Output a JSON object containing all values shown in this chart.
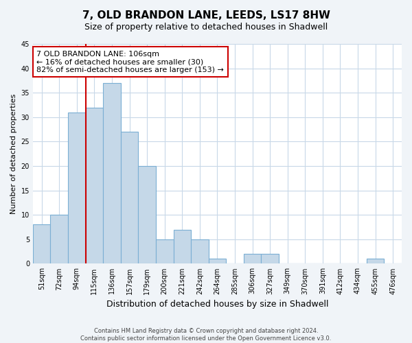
{
  "title": "7, OLD BRANDON LANE, LEEDS, LS17 8HW",
  "subtitle": "Size of property relative to detached houses in Shadwell",
  "xlabel": "Distribution of detached houses by size in Shadwell",
  "ylabel": "Number of detached properties",
  "bin_labels": [
    "51sqm",
    "72sqm",
    "94sqm",
    "115sqm",
    "136sqm",
    "157sqm",
    "179sqm",
    "200sqm",
    "221sqm",
    "242sqm",
    "264sqm",
    "285sqm",
    "306sqm",
    "327sqm",
    "349sqm",
    "370sqm",
    "391sqm",
    "412sqm",
    "434sqm",
    "455sqm",
    "476sqm"
  ],
  "bar_heights": [
    8,
    10,
    31,
    32,
    37,
    27,
    20,
    5,
    7,
    5,
    1,
    0,
    2,
    2,
    0,
    0,
    0,
    0,
    0,
    1,
    0
  ],
  "bar_color": "#c5d8e8",
  "bar_edgecolor": "#7bafd4",
  "ylim": [
    0,
    45
  ],
  "yticks": [
    0,
    5,
    10,
    15,
    20,
    25,
    30,
    35,
    40,
    45
  ],
  "annotation_title": "7 OLD BRANDON LANE: 106sqm",
  "annotation_line1": "← 16% of detached houses are smaller (30)",
  "annotation_line2": "82% of semi-detached houses are larger (153) →",
  "annotation_box_color": "#ffffff",
  "annotation_box_edgecolor": "#cc0000",
  "property_line_color": "#cc0000",
  "footer1": "Contains HM Land Registry data © Crown copyright and database right 2024.",
  "footer2": "Contains public sector information licensed under the Open Government Licence v3.0.",
  "background_color": "#f0f4f8",
  "plot_background_color": "#ffffff",
  "grid_color": "#c8d8e8",
  "title_fontsize": 11,
  "subtitle_fontsize": 9,
  "ylabel_fontsize": 8,
  "xlabel_fontsize": 9,
  "tick_fontsize": 7,
  "annotation_fontsize": 8,
  "footer_fontsize": 6
}
